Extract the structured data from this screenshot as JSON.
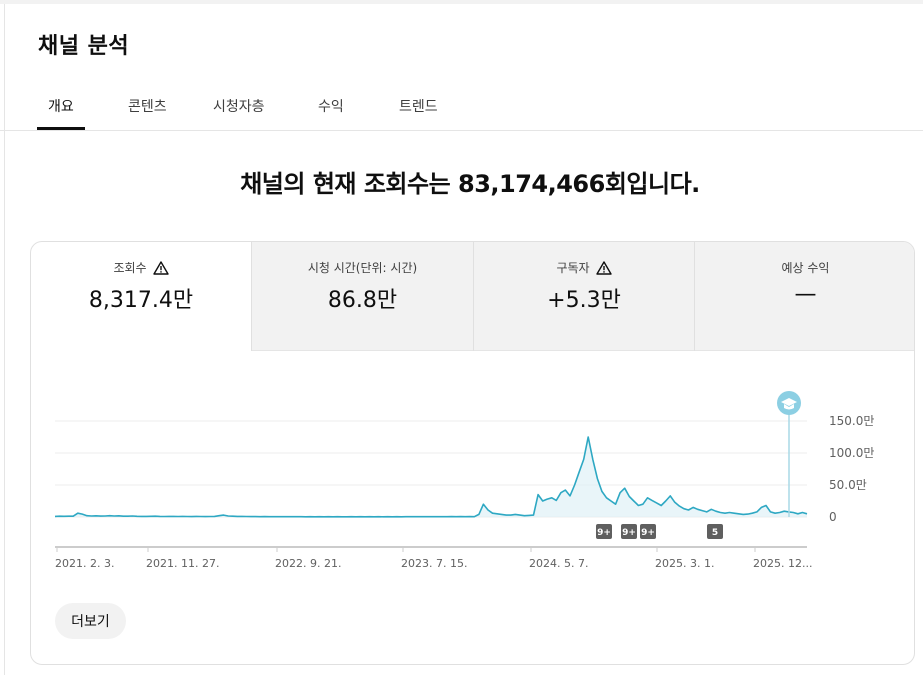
{
  "page": {
    "title": "채널 분석"
  },
  "tabs": [
    {
      "label": "개요"
    },
    {
      "label": "콘텐츠"
    },
    {
      "label": "시청자층"
    },
    {
      "label": "수익"
    },
    {
      "label": "트렌드"
    }
  ],
  "headline": "채널의 현재 조회수는 83,174,466회입니다.",
  "metrics": [
    {
      "label": "조회수",
      "value": "8,317.4만",
      "warning": true
    },
    {
      "label": "시청 시간(단위: 시간)",
      "value": "86.8만",
      "warning": false
    },
    {
      "label": "구독자",
      "value": "+5.3만",
      "warning": true
    },
    {
      "label": "예상 수익",
      "value": "—",
      "warning": false
    }
  ],
  "more_button": "더보기",
  "chart_data": {
    "type": "line",
    "x_ticks": [
      "2021. 2. 3.",
      "2021. 11. 27.",
      "2022. 9. 21.",
      "2023. 7. 15.",
      "2024. 5. 7.",
      "2025. 3. 1.",
      "2025. 12..."
    ],
    "y_ticks": [
      "150.0만",
      "100.0만",
      "50.0만",
      "0"
    ],
    "ylim": [
      0,
      1500000
    ],
    "grid": true,
    "line_color": "#2ea8c3",
    "fill_color": "#dff1f6",
    "event_badges": [
      "9+",
      "9+",
      "9+",
      "5"
    ],
    "series": [
      {
        "values": [
          10000,
          12000,
          11000,
          13000,
          12000,
          60000,
          45000,
          20000,
          15000,
          18000,
          14000,
          16000,
          20000,
          15000,
          18000,
          13000,
          12000,
          15000,
          11000,
          10000,
          9000,
          11000,
          12000,
          10000,
          8000,
          9000,
          10000,
          8000,
          9000,
          8000,
          7000,
          9000,
          8000,
          7000,
          8000,
          9000,
          20000,
          30000,
          15000,
          12000,
          10000,
          9000,
          8000,
          7000,
          6000,
          5000,
          6000,
          5000,
          4000,
          5000,
          4000,
          5000,
          4000,
          5000,
          4000,
          3000,
          4000,
          3000,
          4000,
          3000,
          4000,
          3000,
          4000,
          3000,
          3000,
          4000,
          3000,
          4000,
          3000,
          4000,
          3000,
          4000,
          3000,
          4000,
          3000,
          4000,
          3000,
          4000,
          5000,
          4000,
          5000,
          4000,
          5000,
          4000,
          5000,
          4000,
          5000,
          6000,
          5000,
          6000,
          5000,
          6000,
          5000,
          40000,
          200000,
          110000,
          60000,
          50000,
          40000,
          30000,
          30000,
          40000,
          30000,
          20000,
          25000,
          30000,
          350000,
          250000,
          280000,
          300000,
          260000,
          380000,
          420000,
          330000,
          500000,
          700000,
          900000,
          1250000,
          900000,
          600000,
          400000,
          300000,
          250000,
          200000,
          380000,
          450000,
          320000,
          250000,
          180000,
          200000,
          300000,
          260000,
          220000,
          180000,
          250000,
          330000,
          230000,
          170000,
          130000,
          110000,
          150000,
          120000,
          100000,
          80000,
          120000,
          90000,
          70000,
          60000,
          70000,
          60000,
          50000,
          40000,
          45000,
          60000,
          80000,
          150000,
          180000,
          80000,
          60000,
          70000,
          90000,
          80000,
          70000,
          50000,
          70000,
          50000
        ]
      }
    ]
  }
}
